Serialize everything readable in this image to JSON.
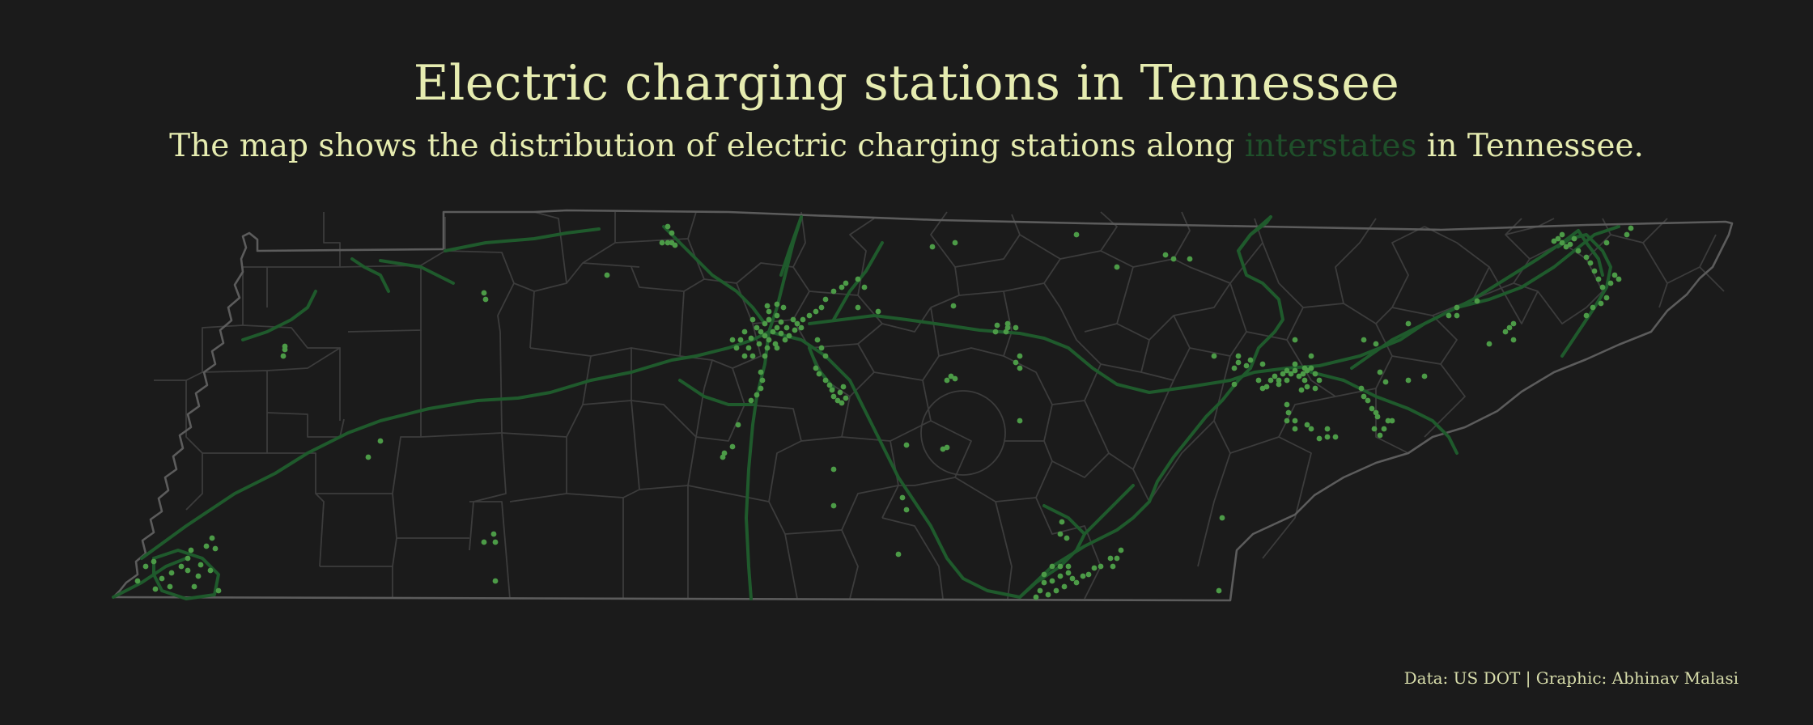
{
  "title": "Electric charging stations in Tennessee",
  "subtitle": {
    "before": "The map shows the distribution of electric charging stations along ",
    "highlight": "interstates",
    "after": " in Tennessee."
  },
  "caption": "Data: US DOT | Graphic: Abhinav Malasi",
  "colors": {
    "background": "#1b1b1b",
    "text": "#e6ecb0",
    "county_border": "#3c3c3c",
    "state_border": "#5a5a5a",
    "interstate": "#1f5a2c",
    "station": "#4c9b47"
  },
  "map_layers": [
    "county-boundaries",
    "interstates",
    "charging-stations"
  ]
}
